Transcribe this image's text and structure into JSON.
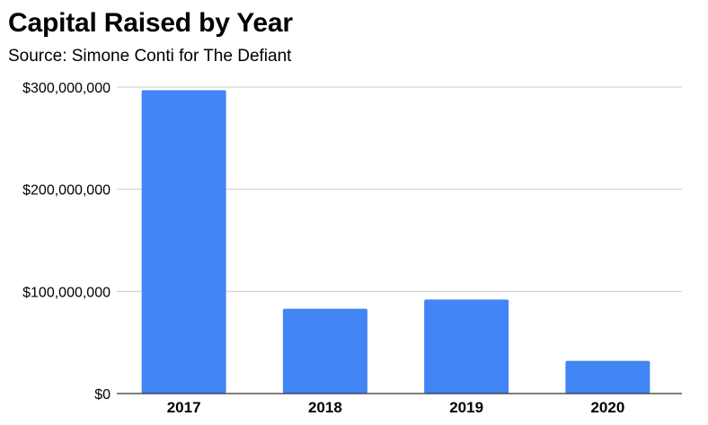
{
  "chart_data": {
    "type": "bar",
    "title": "Capital Raised by Year",
    "subtitle": "Source: Simone Conti for The Defiant",
    "xlabel": "",
    "ylabel": "",
    "categories": [
      "2017",
      "2018",
      "2019",
      "2020"
    ],
    "values": [
      297000000,
      83000000,
      92000000,
      32000000
    ],
    "ylim": [
      0,
      300000000
    ],
    "yticks": [
      0,
      100000000,
      200000000,
      300000000
    ],
    "ytick_labels": [
      "$0",
      "$100,000,000",
      "$200,000,000",
      "$300,000,000"
    ],
    "grid": true,
    "legend": "none",
    "bar_color": "#4285f4",
    "grid_color": "#cccccc",
    "axis_color": "#333333"
  }
}
